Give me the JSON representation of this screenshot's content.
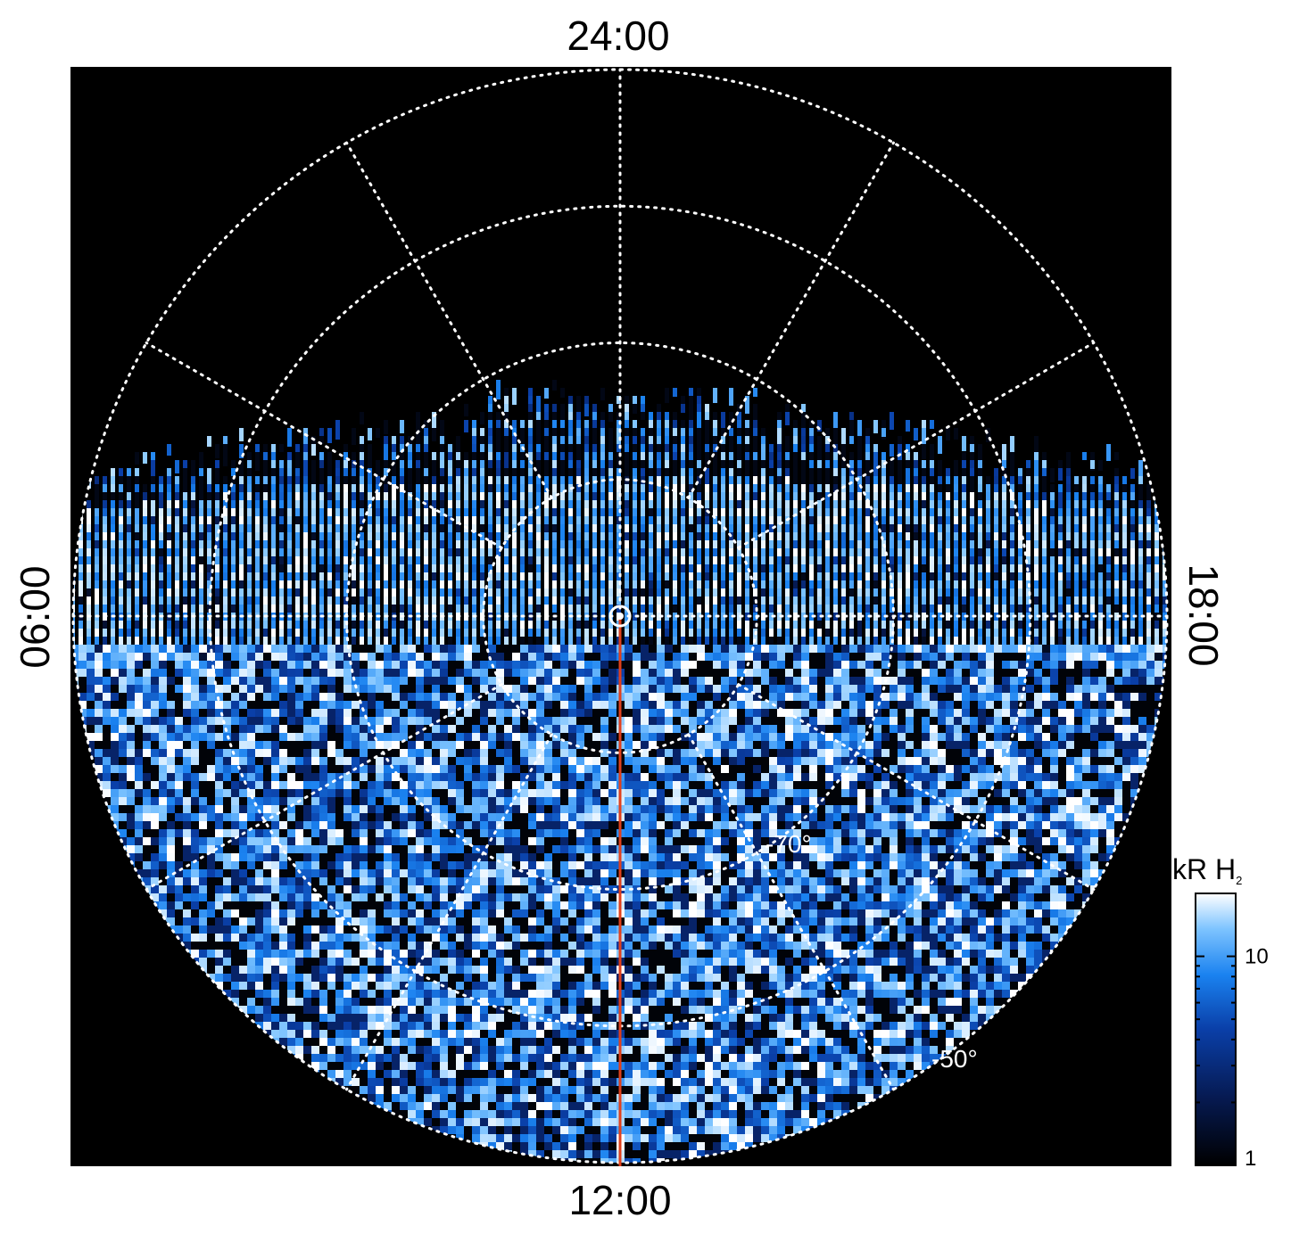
{
  "chart_data": {
    "type": "heatmap",
    "projection": "polar",
    "title": "",
    "local_time_labels": {
      "top": "24:00",
      "bottom": "12:00",
      "left": "06:00",
      "right": "18:00"
    },
    "latitude_labels": [
      "-70°",
      "-50°"
    ],
    "latitude_circles_deg": [
      -80,
      -70,
      -60,
      -50
    ],
    "meridian_spacing_hours": 2,
    "colorbar": {
      "label_main": "kR H",
      "label_sub": "2",
      "scale": "log",
      "range": [
        1,
        20
      ],
      "ticks": [
        {
          "value": 10,
          "label": "10"
        },
        {
          "value": 1,
          "label": "1"
        }
      ]
    },
    "colors": {
      "background": "#000000",
      "grid": "#ffffff",
      "reference_line": "#e0401c",
      "colormap_stops": [
        "#000000",
        "#061a52",
        "#0a3fa8",
        "#1a82f0",
        "#7ec4ff",
        "#ffffff"
      ]
    },
    "features": {
      "auroral_oval_side": "nightside",
      "reference_line_direction": "toward 12:00",
      "pole_marker": "circle-dot"
    },
    "grid": true
  }
}
